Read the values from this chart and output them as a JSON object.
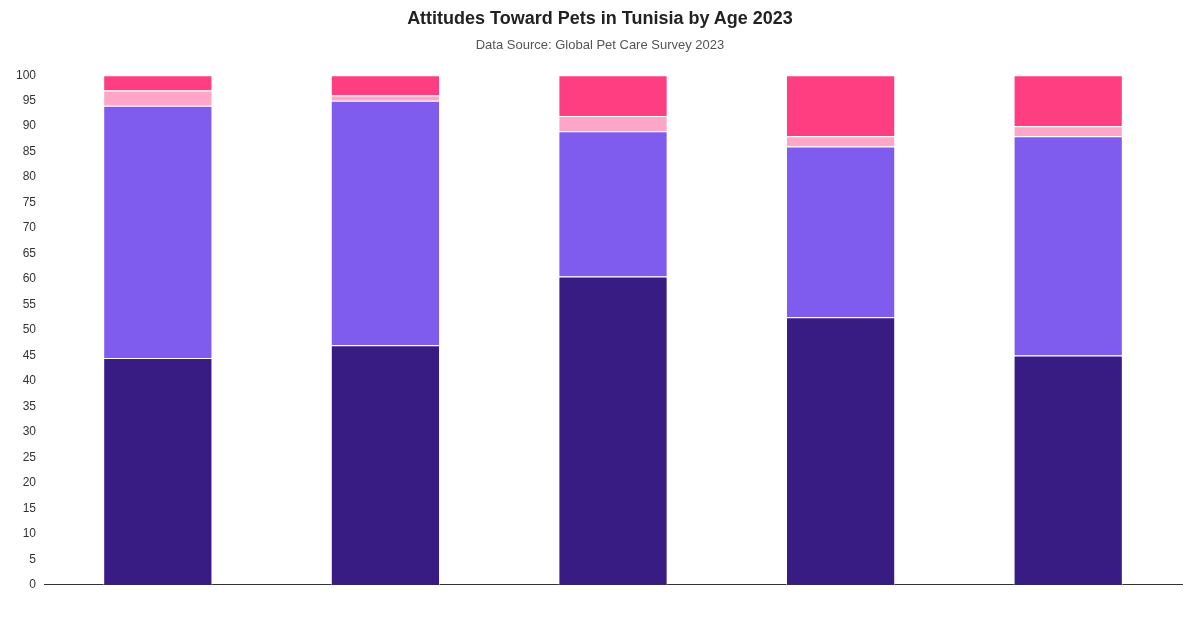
{
  "chart_data": {
    "type": "bar",
    "title": "Attitudes Toward Pets in Tunisia by Age 2023",
    "subtitle": "Data Source: Global Pet Care Survey 2023",
    "categories": [
      null,
      null,
      null,
      null,
      null
    ],
    "stacked": true,
    "series": [
      {
        "color": "#381c83",
        "values": [
          44.5,
          47,
          60.5,
          52.5,
          45
        ]
      },
      {
        "color": "#7f5cee",
        "values": [
          49.5,
          48,
          28.5,
          33.5,
          43
        ]
      },
      {
        "color": "#ffa5c8",
        "values": [
          3,
          1,
          3,
          2,
          2
        ]
      },
      {
        "color": "#ff3e82",
        "values": [
          3,
          4,
          8,
          12,
          10
        ]
      }
    ],
    "ylim": [
      0,
      100
    ],
    "yticks": [
      0,
      5,
      10,
      15,
      20,
      25,
      30,
      35,
      40,
      45,
      50,
      55,
      60,
      65,
      70,
      75,
      80,
      85,
      90,
      95,
      100
    ],
    "grid": false,
    "legend": false,
    "tick_labels": "y"
  }
}
